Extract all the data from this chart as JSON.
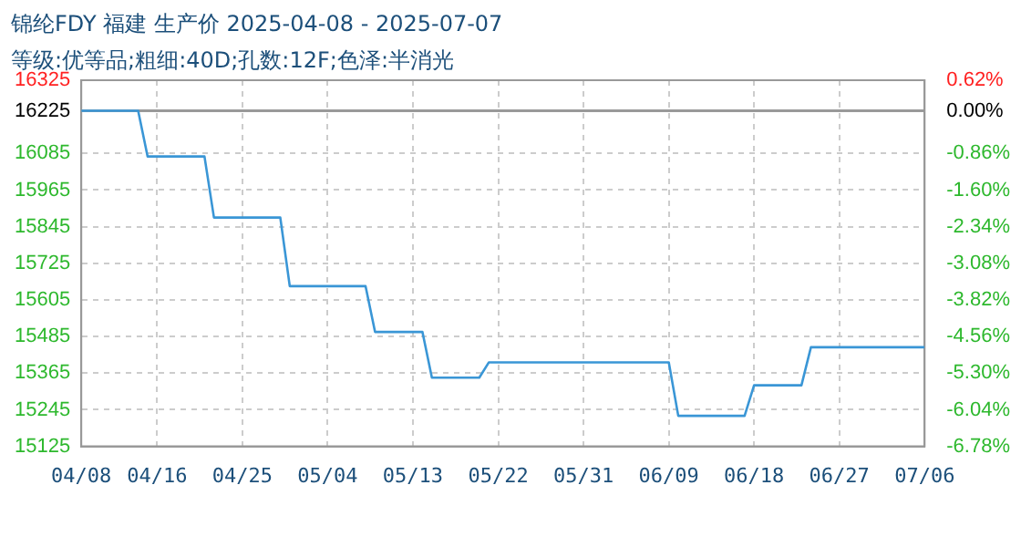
{
  "chart_data": {
    "type": "line",
    "title": "锦纶FDY 福建 生产价 2025-04-08 - 2025-07-07",
    "subtitle": "等级:优等品;粗细:40D;孔数:12F;色泽:半消光",
    "x": [
      "2025-04-08",
      "2025-04-14",
      "2025-04-15",
      "2025-04-21",
      "2025-04-22",
      "2025-04-29",
      "2025-04-30",
      "2025-05-08",
      "2025-05-09",
      "2025-05-14",
      "2025-05-15",
      "2025-05-20",
      "2025-05-21",
      "2025-06-09",
      "2025-06-10",
      "2025-06-17",
      "2025-06-18",
      "2025-06-23",
      "2025-06-24",
      "2025-07-06"
    ],
    "series": [
      {
        "color": "#3a96d6",
        "values": [
          16225,
          16225,
          16075,
          16075,
          15875,
          15875,
          15650,
          15650,
          15500,
          15500,
          15350,
          15350,
          15400,
          15400,
          15225,
          15225,
          15325,
          15325,
          15450,
          15450
        ]
      }
    ],
    "xlim": [
      "2025-04-08",
      "2025-07-06"
    ],
    "xticks": [
      {
        "value": "2025-04-08",
        "label": "04/08"
      },
      {
        "value": "2025-04-16",
        "label": "04/16"
      },
      {
        "value": "2025-04-25",
        "label": "04/25"
      },
      {
        "value": "2025-05-04",
        "label": "05/04"
      },
      {
        "value": "2025-05-13",
        "label": "05/13"
      },
      {
        "value": "2025-05-22",
        "label": "05/22"
      },
      {
        "value": "2025-05-31",
        "label": "05/31"
      },
      {
        "value": "2025-06-09",
        "label": "06/09"
      },
      {
        "value": "2025-06-18",
        "label": "06/18"
      },
      {
        "value": "2025-06-27",
        "label": "06/27"
      },
      {
        "value": "2025-07-06",
        "label": "07/06"
      }
    ],
    "ylim": [
      15125,
      16325
    ],
    "yticks": [
      15125,
      15245,
      15365,
      15485,
      15605,
      15725,
      15845,
      15965,
      16085,
      16225,
      16325
    ],
    "y2lim": [
      -6.78,
      0.62
    ],
    "y2ticks": [
      {
        "value": -6.78,
        "label": "-6.78%"
      },
      {
        "value": -6.04,
        "label": "-6.04%"
      },
      {
        "value": -5.3,
        "label": "-5.30%"
      },
      {
        "value": -4.56,
        "label": "-4.56%"
      },
      {
        "value": -3.82,
        "label": "-3.82%"
      },
      {
        "value": -3.08,
        "label": "-3.08%"
      },
      {
        "value": -2.34,
        "label": "-2.34%"
      },
      {
        "value": -1.6,
        "label": "-1.60%"
      },
      {
        "value": -0.86,
        "label": "-0.86%"
      },
      {
        "value": 0,
        "label": "0.00%"
      },
      {
        "value": 0.62,
        "label": "0.62%"
      }
    ],
    "ref_lines": [
      {
        "axis": "y",
        "value": 16225,
        "color": "#999999"
      }
    ],
    "grid": true,
    "legend": false,
    "marker": "none",
    "line_style": "solid"
  }
}
